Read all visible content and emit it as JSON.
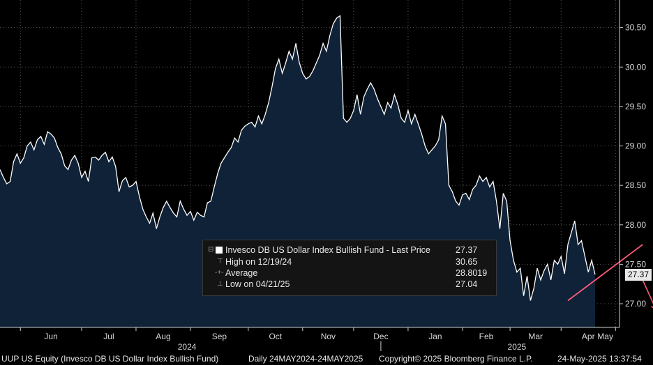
{
  "chart_data": {
    "type": "area",
    "series": [
      {
        "name": "Invesco DB US Dollar Index Bullish Fund",
        "values": [
          28.7,
          28.6,
          28.52,
          28.55,
          28.8,
          28.9,
          28.78,
          28.85,
          29.0,
          29.05,
          28.95,
          29.08,
          29.12,
          29.02,
          29.18,
          29.15,
          29.1,
          28.98,
          28.9,
          28.75,
          28.7,
          28.82,
          28.88,
          28.78,
          28.6,
          28.68,
          28.55,
          28.85,
          28.86,
          28.82,
          28.88,
          28.92,
          28.8,
          28.86,
          28.74,
          28.42,
          28.56,
          28.6,
          28.48,
          28.5,
          28.55,
          28.36,
          28.2,
          28.1,
          28.02,
          28.15,
          27.95,
          28.1,
          28.22,
          28.3,
          28.22,
          28.15,
          28.1,
          28.3,
          28.2,
          28.12,
          28.17,
          28.06,
          28.16,
          28.12,
          28.1,
          28.28,
          28.3,
          28.48,
          28.65,
          28.78,
          28.85,
          28.92,
          28.98,
          29.1,
          29.05,
          29.2,
          29.25,
          29.28,
          29.3,
          29.24,
          29.38,
          29.28,
          29.4,
          29.55,
          29.75,
          29.98,
          30.1,
          29.92,
          30.05,
          30.2,
          30.1,
          30.3,
          30.06,
          29.92,
          29.85,
          29.88,
          29.95,
          30.05,
          30.15,
          30.3,
          30.2,
          30.4,
          30.55,
          30.62,
          30.65,
          29.35,
          29.3,
          29.35,
          29.45,
          29.65,
          29.4,
          29.62,
          29.72,
          29.8,
          29.72,
          29.6,
          29.5,
          29.4,
          29.55,
          29.48,
          29.65,
          29.52,
          29.35,
          29.3,
          29.45,
          29.28,
          29.4,
          29.28,
          29.15,
          29.0,
          28.9,
          28.95,
          29.0,
          29.08,
          29.38,
          29.28,
          28.5,
          28.42,
          28.3,
          28.25,
          28.38,
          28.4,
          28.32,
          28.45,
          28.5,
          28.62,
          28.55,
          28.6,
          28.48,
          28.55,
          28.3,
          27.95,
          28.4,
          28.3,
          27.8,
          27.55,
          27.4,
          27.45,
          27.1,
          27.35,
          27.04,
          27.2,
          27.45,
          27.3,
          27.42,
          27.5,
          27.3,
          27.55,
          27.5,
          27.6,
          27.38,
          27.75,
          27.9,
          28.05,
          27.75,
          27.8,
          27.6,
          27.4,
          27.55,
          27.37
        ],
        "color": "#ffffff",
        "fill": "#0f2238"
      }
    ],
    "month_labels": [
      {
        "label": "Jun",
        "index": 6
      },
      {
        "label": "Jul",
        "index": 24
      },
      {
        "label": "Aug",
        "index": 40
      },
      {
        "label": "Sep",
        "index": 56
      },
      {
        "label": "Oct",
        "index": 73
      },
      {
        "label": "Nov",
        "index": 89
      },
      {
        "label": "Dec",
        "index": 104
      },
      {
        "label": "Jan",
        "index": 120
      },
      {
        "label": "Feb",
        "index": 136
      },
      {
        "label": "Mar",
        "index": 150
      },
      {
        "label": "Apr",
        "index": 165
      },
      {
        "label": "May",
        "index": 181
      }
    ],
    "year_labels": [
      {
        "label": "2024",
        "index": 55
      },
      {
        "label": "2025",
        "index": 152
      }
    ],
    "year_divider_index": 112,
    "yticks": [
      "27.00",
      "27.50",
      "28.00",
      "28.50",
      "29.00",
      "29.50",
      "30.00",
      "30.50"
    ],
    "ylim": [
      26.7,
      30.85
    ],
    "grid": true,
    "trendline": {
      "from": [
        167,
        27.04
      ],
      "to": [
        189,
        27.75
      ],
      "color": "#ff5c7a"
    },
    "projection": {
      "from": [
        189,
        27.3
      ],
      "to": [
        193,
        26.92
      ],
      "color": "#ff5c7a"
    },
    "last_price_label": "27.37",
    "legend": {
      "title": "Invesco DB US Dollar Index Bullish Fund - Last Price",
      "title_value": "27.37",
      "rows": [
        {
          "name": "High on 12/19/24",
          "value": "30.65"
        },
        {
          "name": "Average",
          "value": "28.8019"
        },
        {
          "name": "Low on 04/21/25",
          "value": "27.04"
        }
      ]
    }
  },
  "footer": {
    "ticker": "UUP US Equity (Invesco DB US Dollar Index Bullish Fund)",
    "range": "Daily 24MAY2024-24MAY2025",
    "copyright": "Copyright© 2025 Bloomberg Finance L.P.",
    "timestamp": "24-May-2025 13:37:54"
  }
}
